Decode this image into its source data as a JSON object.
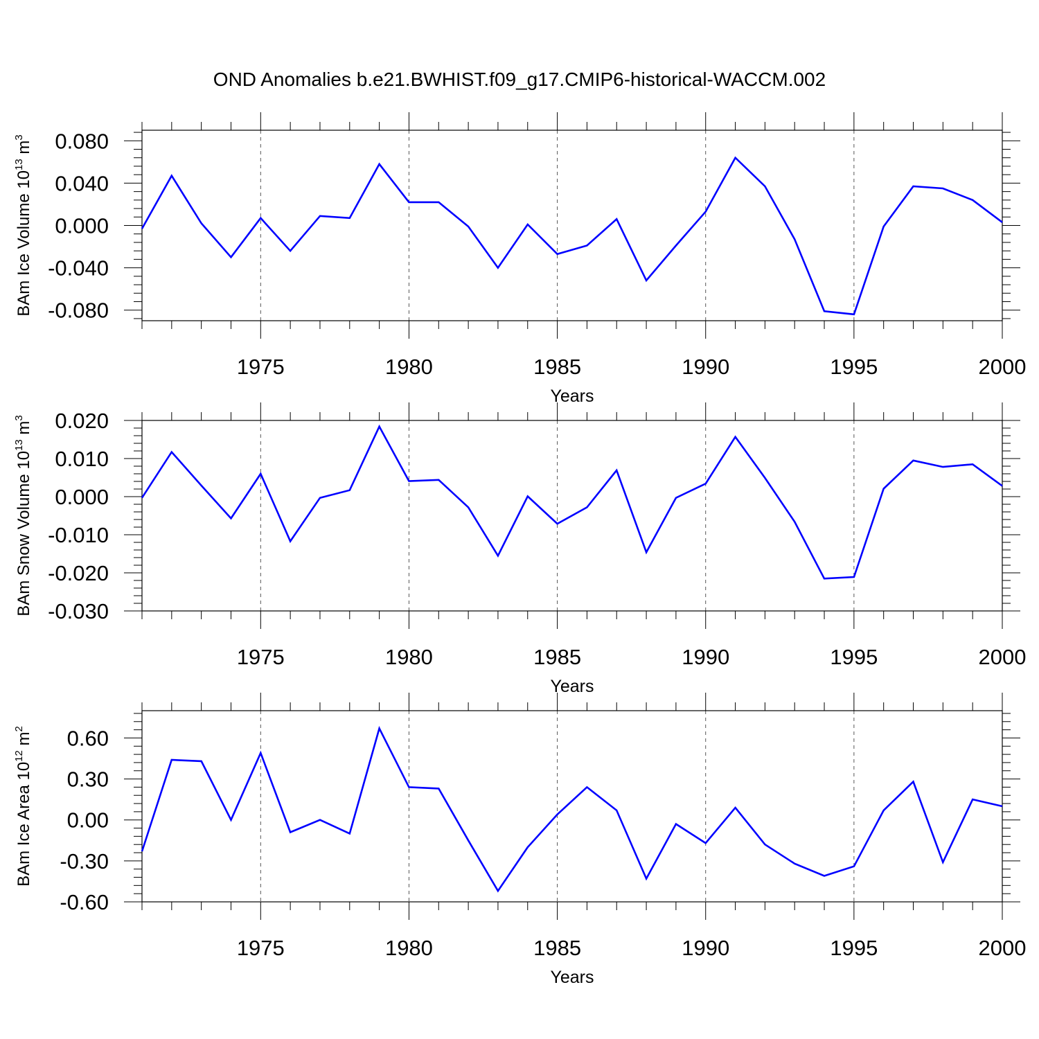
{
  "figure_title": "OND Anomalies b.e21.BWHIST.f09_g17.CMIP6-historical-WACCM.002",
  "colors": {
    "line": "#0000ff",
    "axes": "#000000",
    "grid": "#555555"
  },
  "chart_data": [
    {
      "type": "line",
      "ylabel": {
        "text": "BAm Ice Volume 10",
        "exponent": "13",
        "unit": " m",
        "unit_exponent": "3"
      },
      "xlabel": "Years",
      "xlim": [
        1971,
        2000
      ],
      "ylim": [
        -0.09,
        0.09
      ],
      "yticks": [
        0.08,
        0.04,
        0.0,
        -0.04,
        -0.08
      ],
      "ytick_labels": [
        "0.080",
        "0.040",
        "0.000",
        "-0.040",
        "-0.080"
      ],
      "xticks": [
        1975,
        1980,
        1985,
        1990,
        1995,
        2000
      ],
      "xtick_labels": [
        "1975",
        "1980",
        "1985",
        "1990",
        "1995",
        "2000"
      ],
      "grid": "vertical dashed at major x ticks",
      "series": [
        {
          "x": [
            1971,
            1972,
            1973,
            1974,
            1975,
            1976,
            1977,
            1978,
            1979,
            1980,
            1981,
            1982,
            1983,
            1984,
            1985,
            1986,
            1987,
            1988,
            1989,
            1990,
            1991,
            1992,
            1993,
            1994,
            1995,
            1996,
            1997,
            1998,
            1999,
            2000
          ],
          "values": [
            -0.003,
            0.047,
            0.002,
            -0.03,
            0.007,
            -0.024,
            0.009,
            0.007,
            0.058,
            0.022,
            0.022,
            -0.001,
            -0.04,
            0.001,
            -0.027,
            -0.019,
            0.006,
            -0.052,
            -0.019,
            0.013,
            0.064,
            0.037,
            -0.013,
            -0.081,
            -0.084,
            -0.001,
            0.037,
            0.035,
            0.024,
            0.003
          ]
        }
      ]
    },
    {
      "type": "line",
      "ylabel": {
        "text": "BAm Snow Volume 10",
        "exponent": "13",
        "unit": " m",
        "unit_exponent": "3"
      },
      "xlabel": "Years",
      "xlim": [
        1971,
        2000
      ],
      "ylim": [
        -0.03,
        0.02
      ],
      "yticks": [
        0.02,
        0.01,
        0.0,
        -0.01,
        -0.02,
        -0.03
      ],
      "ytick_labels": [
        "0.020",
        "0.010",
        "0.000",
        "-0.010",
        "-0.020",
        "-0.030"
      ],
      "xticks": [
        1975,
        1980,
        1985,
        1990,
        1995,
        2000
      ],
      "xtick_labels": [
        "1975",
        "1980",
        "1985",
        "1990",
        "1995",
        "2000"
      ],
      "grid": "vertical dashed at major x ticks",
      "series": [
        {
          "x": [
            1971,
            1972,
            1973,
            1974,
            1975,
            1976,
            1977,
            1978,
            1979,
            1980,
            1981,
            1982,
            1983,
            1984,
            1985,
            1986,
            1987,
            1988,
            1989,
            1990,
            1991,
            1992,
            1993,
            1994,
            1995,
            1996,
            1997,
            1998,
            1999,
            2000
          ],
          "values": [
            -0.0003,
            0.0117,
            0.0029,
            -0.0057,
            0.006,
            -0.0117,
            -0.0003,
            0.0017,
            0.0184,
            0.0041,
            0.0044,
            -0.0028,
            -0.0155,
            0.0001,
            -0.0071,
            -0.0028,
            0.0069,
            -0.0146,
            -0.0003,
            0.0034,
            0.0157,
            0.0049,
            -0.0066,
            -0.0215,
            -0.0211,
            0.0021,
            0.0095,
            0.0078,
            0.0085,
            0.0028
          ]
        }
      ]
    },
    {
      "type": "line",
      "ylabel": {
        "text": "BAm Ice Area 10",
        "exponent": "12",
        "unit": " m",
        "unit_exponent": "2"
      },
      "xlabel": "Years",
      "xlim": [
        1971,
        2000
      ],
      "ylim": [
        -0.6,
        0.8
      ],
      "yticks": [
        0.6,
        0.3,
        0.0,
        -0.3,
        -0.6
      ],
      "ytick_labels": [
        "0.60",
        "0.30",
        "0.00",
        "-0.30",
        "-0.60"
      ],
      "xticks": [
        1975,
        1980,
        1985,
        1990,
        1995,
        2000
      ],
      "xtick_labels": [
        "1975",
        "1980",
        "1985",
        "1990",
        "1995",
        "2000"
      ],
      "grid": "vertical dashed at major x ticks",
      "series": [
        {
          "x": [
            1971,
            1972,
            1973,
            1974,
            1975,
            1976,
            1977,
            1978,
            1979,
            1980,
            1981,
            1982,
            1983,
            1984,
            1985,
            1986,
            1987,
            1988,
            1989,
            1990,
            1991,
            1992,
            1993,
            1994,
            1995,
            1996,
            1997,
            1998,
            1999,
            2000
          ],
          "values": [
            -0.23,
            0.44,
            0.43,
            0.0,
            0.49,
            -0.09,
            0.0,
            -0.1,
            0.67,
            0.24,
            0.23,
            -0.15,
            -0.52,
            -0.2,
            0.04,
            0.24,
            0.07,
            -0.43,
            -0.03,
            -0.17,
            0.09,
            -0.18,
            -0.32,
            -0.41,
            -0.34,
            0.07,
            0.28,
            -0.31,
            0.15,
            0.1
          ]
        }
      ]
    }
  ]
}
